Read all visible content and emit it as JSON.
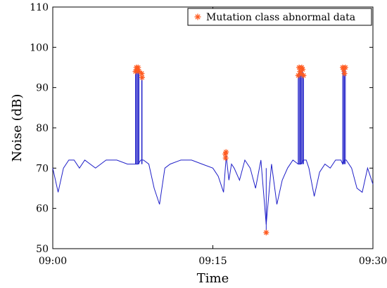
{
  "chart_data": {
    "type": "line",
    "xlabel": "Time",
    "ylabel": "Noise (dB)",
    "xlim": [
      "09:00",
      "09:30"
    ],
    "ylim": [
      50,
      110
    ],
    "x_ticks": [
      "09:00",
      "09:15",
      "09:30"
    ],
    "y_ticks": [
      50,
      60,
      70,
      80,
      90,
      100,
      110
    ],
    "grid": false,
    "legend": {
      "placement": "top-right",
      "entries": [
        "Mutation class abnormal data"
      ]
    },
    "colors": {
      "series": "#1f1fc8",
      "abnormal": "#ff5a1f"
    },
    "series": [
      {
        "style": "line",
        "x": [
          "09:00:00",
          "09:00:30",
          "09:01:00",
          "09:01:30",
          "09:02:00",
          "09:02:30",
          "09:03:00",
          "09:04:00",
          "09:05:00",
          "09:06:00",
          "09:07:00",
          "09:07:30",
          "09:07:45",
          "09:08:00",
          "09:08:15",
          "09:08:30",
          "09:09:00",
          "09:09:30",
          "09:10:00",
          "09:10:30",
          "09:11:00",
          "09:12:00",
          "09:13:00",
          "09:14:00",
          "09:15:00",
          "09:15:30",
          "09:16:00",
          "09:16:15",
          "09:16:30",
          "09:16:45",
          "09:17:00",
          "09:17:30",
          "09:18:00",
          "09:18:30",
          "09:19:00",
          "09:19:30",
          "09:20:00",
          "09:20:30",
          "09:21:00",
          "09:21:30",
          "09:22:00",
          "09:22:30",
          "09:23:00",
          "09:23:15",
          "09:23:30",
          "09:23:45",
          "09:24:00",
          "09:24:30",
          "09:25:00",
          "09:25:30",
          "09:26:00",
          "09:26:30",
          "09:27:00",
          "09:27:10",
          "09:27:20",
          "09:27:30",
          "09:28:00",
          "09:28:30",
          "09:29:00",
          "09:29:30",
          "09:30:00"
        ],
        "y": [
          70,
          64,
          70,
          72,
          72,
          70,
          72,
          70,
          72,
          72,
          71,
          71,
          71,
          71,
          72,
          72,
          71,
          65,
          61,
          70,
          71,
          72,
          72,
          71,
          70,
          68,
          64,
          73,
          67,
          71,
          70,
          67,
          72,
          70,
          65,
          72,
          56,
          71,
          61,
          67,
          70,
          72,
          71,
          71,
          72,
          72,
          70,
          63,
          69,
          71,
          70,
          72,
          72,
          71,
          72,
          72,
          70,
          65,
          64,
          70,
          66
        ]
      },
      {
        "style": "markers",
        "name": "Mutation class abnormal data",
        "x": [
          "09:07:45",
          "09:07:50",
          "09:07:55",
          "09:08:00",
          "09:08:05",
          "09:08:20",
          "09:08:22",
          "09:16:10",
          "09:16:12",
          "09:16:14",
          "09:20:00",
          "09:23:00",
          "09:23:05",
          "09:23:10",
          "09:23:15",
          "09:23:20",
          "09:23:25",
          "09:23:30",
          "09:27:10",
          "09:27:15",
          "09:27:20",
          "09:27:25"
        ],
        "y": [
          94,
          95,
          94.5,
          95,
          94,
          93.5,
          92.5,
          73.5,
          72.5,
          74,
          54,
          93,
          95,
          94,
          93.5,
          95,
          94.5,
          93,
          95,
          94.5,
          93.5,
          95
        ]
      }
    ]
  }
}
